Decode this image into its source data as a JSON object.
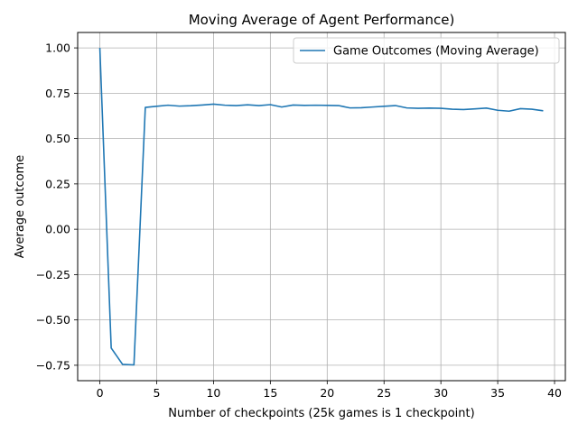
{
  "chart_data": {
    "type": "line",
    "title": "Moving Average of Agent Performance)",
    "xlabel": "Number of checkpoints (25k games is 1 checkpoint)",
    "ylabel": "Average outcome",
    "xlim": [
      -1.95,
      40.95
    ],
    "ylim": [
      -0.835,
      1.085
    ],
    "xticks": [
      0,
      5,
      10,
      15,
      20,
      25,
      30,
      35,
      40
    ],
    "yticks": [
      -0.75,
      -0.5,
      -0.25,
      0.0,
      0.25,
      0.5,
      0.75,
      1.0
    ],
    "grid": true,
    "legend_position": "top-right",
    "series": [
      {
        "name": "Game Outcomes (Moving Average)",
        "color": "#1f77b4",
        "x": [
          0,
          1,
          2,
          3,
          4,
          5,
          6,
          7,
          8,
          9,
          10,
          11,
          12,
          13,
          14,
          15,
          16,
          17,
          18,
          19,
          20,
          21,
          22,
          23,
          24,
          25,
          26,
          27,
          28,
          29,
          30,
          31,
          32,
          33,
          34,
          35,
          36,
          37,
          38,
          39
        ],
        "y": [
          1.0,
          -0.655,
          -0.745,
          -0.748,
          0.672,
          0.678,
          0.684,
          0.679,
          0.681,
          0.685,
          0.69,
          0.684,
          0.682,
          0.686,
          0.682,
          0.687,
          0.674,
          0.685,
          0.683,
          0.684,
          0.683,
          0.682,
          0.669,
          0.67,
          0.674,
          0.678,
          0.682,
          0.669,
          0.667,
          0.668,
          0.667,
          0.662,
          0.66,
          0.664,
          0.668,
          0.656,
          0.651,
          0.665,
          0.662,
          0.653
        ]
      }
    ]
  }
}
